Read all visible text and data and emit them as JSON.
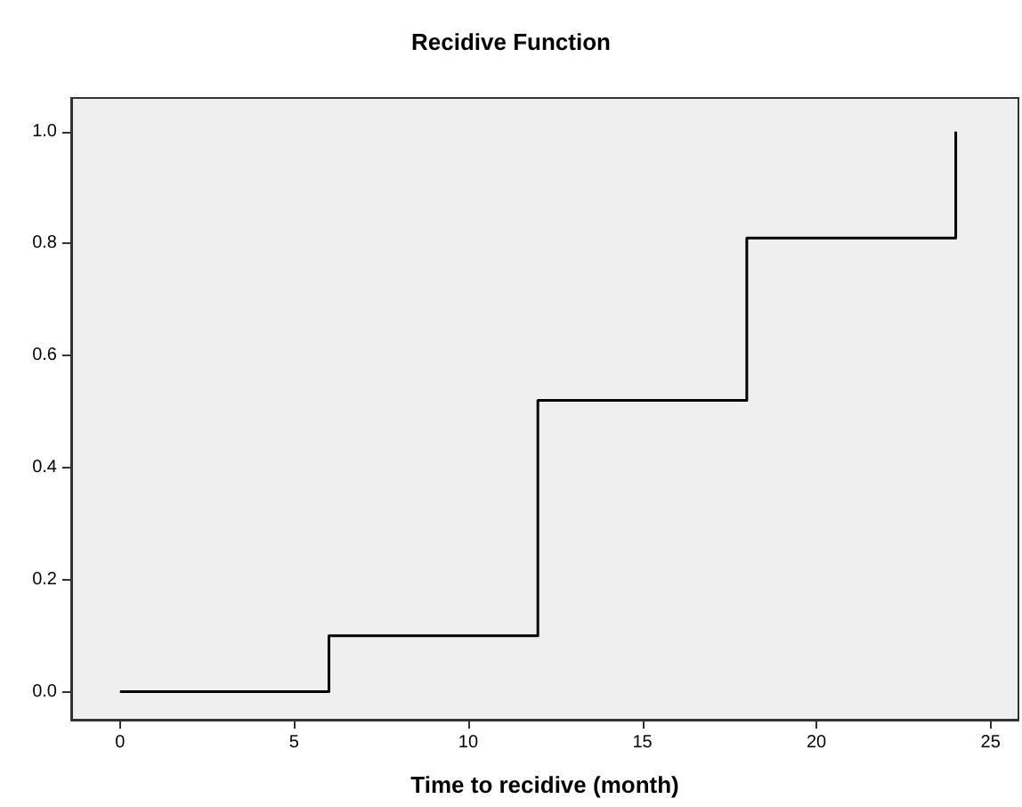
{
  "chart_data": {
    "type": "step",
    "title": "Recidive Function",
    "xlabel": "Time to recidive (month)",
    "x": [
      0,
      6,
      12,
      18,
      24
    ],
    "series": [
      {
        "color": "#000000",
        "values": [
          0,
          0.1,
          0.52,
          0.81,
          1.0
        ]
      }
    ],
    "xlim": [
      -1.4,
      25.8
    ],
    "xticks": [
      0,
      5,
      10,
      15,
      20,
      25
    ],
    "ylim": [
      -0.05,
      1.06
    ],
    "yticks": [
      {
        "value": 0,
        "label": "0.0"
      },
      {
        "value": 0.2,
        "label": "0.2"
      },
      {
        "value": 0.4,
        "label": "0.4"
      },
      {
        "value": 0.6,
        "label": "0.6"
      },
      {
        "value": 0.8,
        "label": "0.8"
      },
      {
        "value": 1,
        "label": "1.0"
      }
    ],
    "grid": false,
    "marker": "none",
    "line_style": "solid"
  }
}
